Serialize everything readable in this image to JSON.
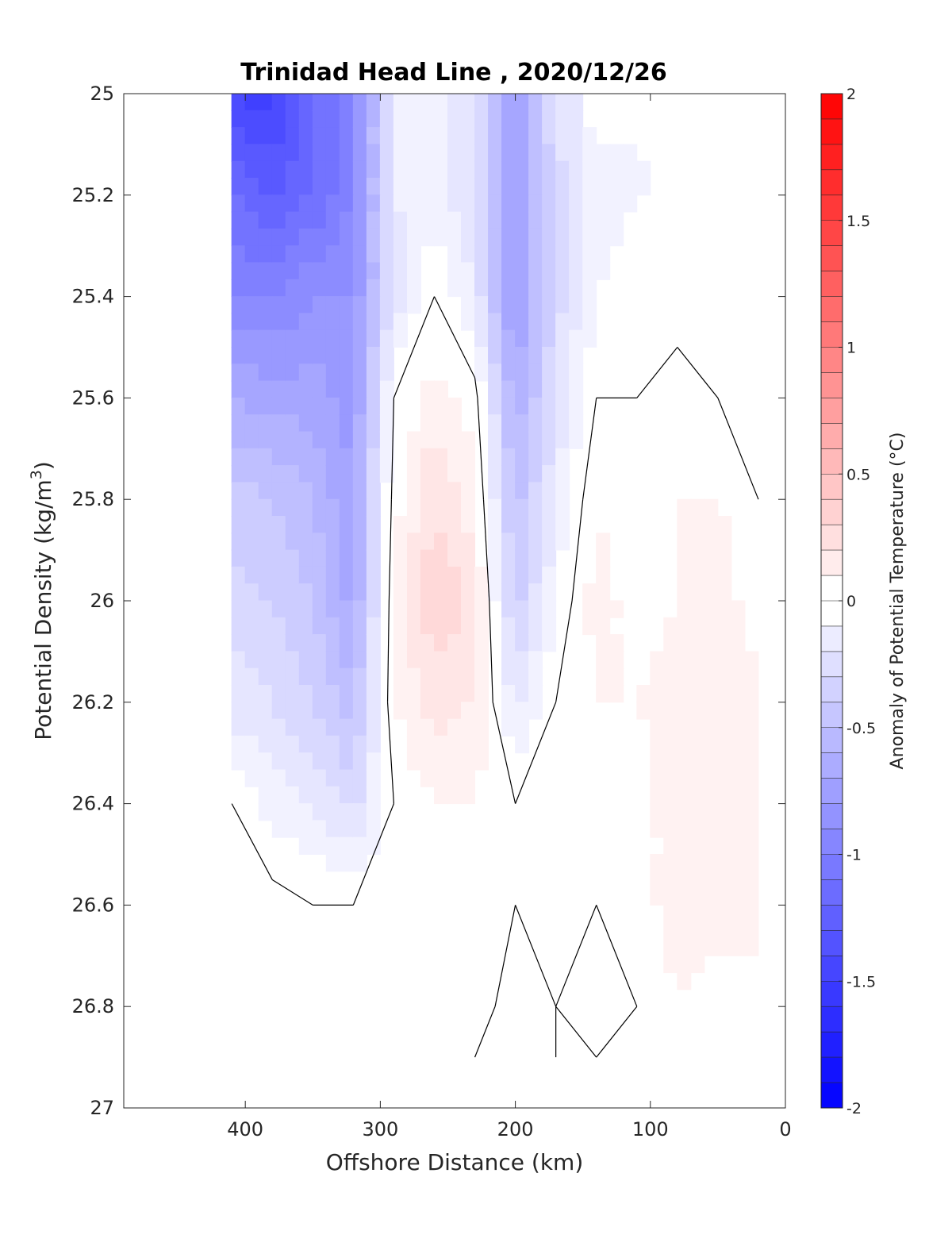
{
  "chart_data": {
    "type": "heatmap",
    "title": "Trinidad Head Line , 2020/12/26",
    "xlabel": "Offshore Distance (km)",
    "ylabel_main": "Potential Density (kg/m",
    "ylabel_sup": "3",
    "ylabel_close": ")",
    "colorbar_label": "Anomaly of Potential Temperature (°C)",
    "x_reversed": true,
    "xlim": [
      0,
      490
    ],
    "ylim": [
      25,
      27
    ],
    "y_reversed": true,
    "x_ticks": [
      400,
      300,
      200,
      100,
      0
    ],
    "x_tick_labels": [
      "400",
      "300",
      "200",
      "100",
      "0"
    ],
    "y_ticks": [
      25,
      25.2,
      25.4,
      25.6,
      25.8,
      26,
      26.2,
      26.4,
      26.6,
      26.8,
      27
    ],
    "y_tick_labels": [
      "25",
      "25.2",
      "25.4",
      "25.6",
      "25.8",
      "26",
      "26.2",
      "26.4",
      "26.6",
      "26.8",
      "27"
    ],
    "colorbar_range": [
      -2,
      2
    ],
    "colorbar_step": 0.1,
    "colorbar_ticks": [
      -2,
      -1.5,
      -1,
      -0.5,
      0,
      0.5,
      1,
      1.5,
      2
    ],
    "colorbar_tick_labels": [
      "-2",
      "-1.5",
      "-1",
      "-0.5",
      "0",
      "0.5",
      "1",
      "1.5",
      "2"
    ],
    "colormap": {
      "negative": "#0000ff",
      "zero": "#ffffff",
      "positive": "#ff0000"
    },
    "contour_level": 0,
    "data_extent": {
      "x": [
        410,
        20
      ],
      "y": [
        25,
        26.9
      ]
    },
    "distance_km": [
      410,
      380,
      350,
      320,
      290,
      260,
      230,
      200,
      170,
      140,
      110,
      80,
      50,
      20
    ],
    "density_levels": [
      25.0,
      25.2,
      25.4,
      25.6,
      25.8,
      26.0,
      26.2,
      26.4,
      26.6,
      26.8,
      26.9
    ],
    "anomaly_grid": [
      [
        -1.5,
        -1.55,
        -1.2,
        -1.05,
        -0.15,
        -0.1,
        -0.3,
        -0.9,
        -0.25,
        null,
        null,
        null,
        null,
        null
      ],
      [
        -1.2,
        -1.3,
        -1.2,
        -1.0,
        -0.2,
        -0.15,
        -0.3,
        -0.85,
        -0.35,
        -0.15,
        -0.1,
        null,
        null,
        null
      ],
      [
        -1.0,
        -1.0,
        -0.9,
        -0.9,
        -0.3,
        0.0,
        -0.2,
        -0.85,
        -0.35,
        -0.1,
        -0.05,
        -0.05,
        -0.05,
        -0.1
      ],
      [
        -0.7,
        -0.75,
        -0.75,
        -0.85,
        0.0,
        0.15,
        0.05,
        -0.7,
        -0.3,
        0.0,
        0.0,
        0.05,
        0.0,
        -0.05
      ],
      [
        -0.45,
        -0.5,
        -0.6,
        -0.8,
        0.05,
        0.3,
        0.15,
        -0.55,
        -0.2,
        0.1,
        0.0,
        0.1,
        0.1,
        0.0
      ],
      [
        -0.35,
        -0.4,
        -0.5,
        -0.75,
        0.1,
        0.4,
        0.25,
        -0.45,
        -0.1,
        0.15,
        0.05,
        0.1,
        0.2,
        0.0
      ],
      [
        -0.25,
        -0.3,
        -0.4,
        -0.55,
        0.1,
        0.25,
        0.2,
        -0.25,
        0.0,
        0.1,
        0.1,
        0.15,
        0.15,
        0.15
      ],
      [
        0.0,
        -0.15,
        -0.2,
        -0.35,
        0.0,
        0.1,
        0.1,
        0.0,
        0.05,
        0.05,
        0.05,
        0.15,
        0.15,
        0.15
      ],
      [
        0.0,
        0.05,
        0.0,
        0.0,
        0.0,
        0.05,
        0.05,
        0.0,
        0.05,
        0.0,
        0.05,
        0.15,
        0.15,
        0.15
      ],
      [
        0.0,
        0.1,
        0.05,
        0.0,
        0.0,
        0.05,
        0.05,
        -0.05,
        0.0,
        -0.05,
        0.0,
        0.1,
        0.05,
        0.05
      ],
      [
        0.0,
        0.05,
        0.05,
        0.0,
        0.0,
        0.05,
        0.0,
        -0.05,
        0.0,
        0.0,
        0.0,
        0.05,
        0.05,
        0.0
      ]
    ]
  }
}
